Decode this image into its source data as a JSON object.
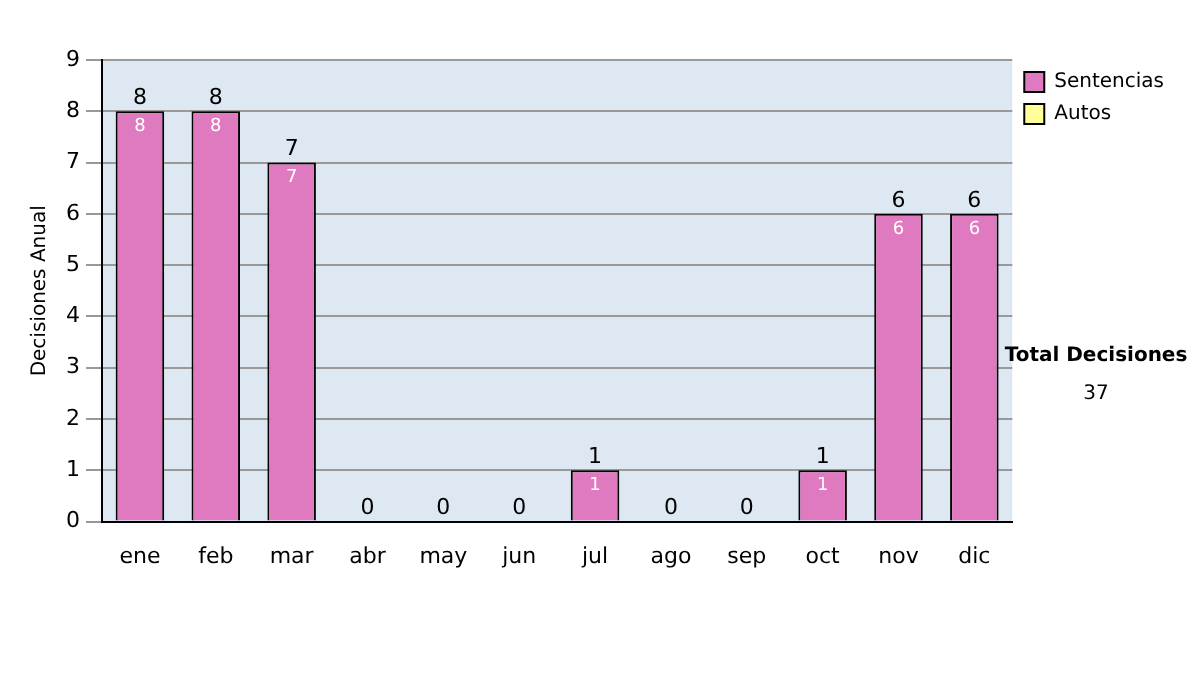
{
  "chart_data": {
    "type": "bar",
    "stacked": true,
    "ylabel": "Decisiones Anual",
    "categories": [
      "ene",
      "feb",
      "mar",
      "abr",
      "may",
      "jun",
      "jul",
      "ago",
      "sep",
      "oct",
      "nov",
      "dic"
    ],
    "series": [
      {
        "name": "Sentencias",
        "color": "#e07ac0",
        "values": [
          8,
          8,
          7,
          0,
          0,
          0,
          1,
          0,
          0,
          1,
          6,
          6
        ],
        "value_labels": [
          "8",
          "8",
          "7",
          null,
          null,
          null,
          "1",
          null,
          null,
          "1",
          "6",
          "6"
        ]
      },
      {
        "name": "Autos",
        "color": "#ffff99",
        "values": [
          0,
          0,
          0,
          0,
          0,
          0,
          0,
          0,
          0,
          0,
          0,
          0
        ]
      }
    ],
    "totals": [
      "8",
      "8",
      "7",
      "0",
      "0",
      "0",
      "1",
      "0",
      "0",
      "1",
      "6",
      "6"
    ],
    "ylim": [
      0,
      9
    ],
    "yticks": [
      0,
      1,
      2,
      3,
      4,
      5,
      6,
      7,
      8,
      9
    ],
    "grid": "y",
    "legend": "right",
    "annotations": [
      "Total Decisiones",
      "37"
    ]
  }
}
